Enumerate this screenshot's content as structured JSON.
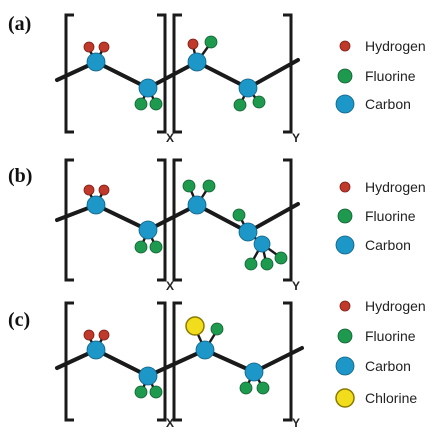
{
  "colors": {
    "hydrogen": "#c0392b",
    "fluorine": "#1e9a4f",
    "carbon": "#1d97c8",
    "chlorine": "#f2dd1c"
  },
  "panels": [
    {
      "label": "(a)",
      "subscript_left": "X",
      "subscript_right": "Y",
      "legend": [
        {
          "text": "Hydrogen",
          "atom": "hydrogen"
        },
        {
          "text": "Fluorine",
          "atom": "fluorine"
        },
        {
          "text": "Carbon",
          "atom": "carbon"
        }
      ]
    },
    {
      "label": "(b)",
      "subscript_left": "X",
      "subscript_right": "Y",
      "legend": [
        {
          "text": "Hydrogen",
          "atom": "hydrogen"
        },
        {
          "text": "Fluorine",
          "atom": "fluorine"
        },
        {
          "text": "Carbon",
          "atom": "carbon"
        }
      ]
    },
    {
      "label": "(c)",
      "subscript_left": "X",
      "subscript_right": "Y",
      "legend": [
        {
          "text": "Hydrogen",
          "atom": "hydrogen"
        },
        {
          "text": "Fluorine",
          "atom": "fluorine"
        },
        {
          "text": "Carbon",
          "atom": "carbon"
        },
        {
          "text": "Chlorine",
          "atom": "chlorine"
        }
      ]
    }
  ]
}
